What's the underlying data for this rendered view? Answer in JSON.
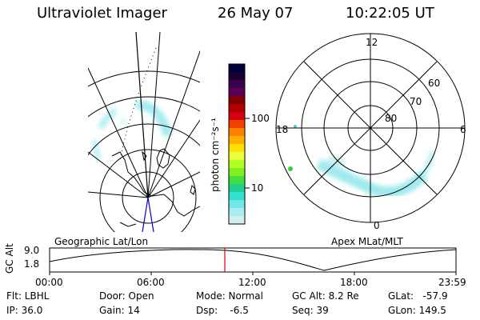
{
  "header": {
    "instrument": "Ultraviolet Imager",
    "date": "26 May 07",
    "time": "10:22:05 UT"
  },
  "geo_panel": {
    "label": "Geographic Lat/Lon"
  },
  "colorbar": {
    "unit_label": "photon cm⁻²s⁻¹",
    "ticks": [
      "100",
      "10"
    ],
    "colors": [
      "#000040",
      "#1a0033",
      "#3a004d",
      "#5a005a",
      "#800000",
      "#b00000",
      "#d80010",
      "#f04000",
      "#ff8000",
      "#ffb000",
      "#ffe000",
      "#e8ff40",
      "#b0ff20",
      "#80f020",
      "#40e040",
      "#20d090",
      "#30e0d0",
      "#70e8e8",
      "#a8eeee",
      "#d0f0f0"
    ]
  },
  "polar_panel": {
    "label": "Apex  MLat/MLT",
    "mlt_labels": [
      "12",
      "18",
      "6",
      "0"
    ],
    "lat_labels": [
      "60",
      "70",
      "80"
    ]
  },
  "timeline": {
    "ylabel": "GC Alt",
    "y_top": "9.0",
    "y_bottom": "1.8",
    "x_ticks": [
      "00:00",
      "06:00",
      "12:00",
      "18:00",
      "23:59"
    ]
  },
  "footer": {
    "flt": "Flt: LBHL",
    "ip": "IP: 36.0",
    "door": "Door: Open",
    "gain": "Gain: 14",
    "mode": "Mode: Normal",
    "dsp": "Dsp:    -6.5",
    "gcalt": "GC Alt: 8.2 Re",
    "seq": "Seq: 39",
    "glat": "GLat:   -57.9",
    "glon": "GLon: 149.5"
  }
}
